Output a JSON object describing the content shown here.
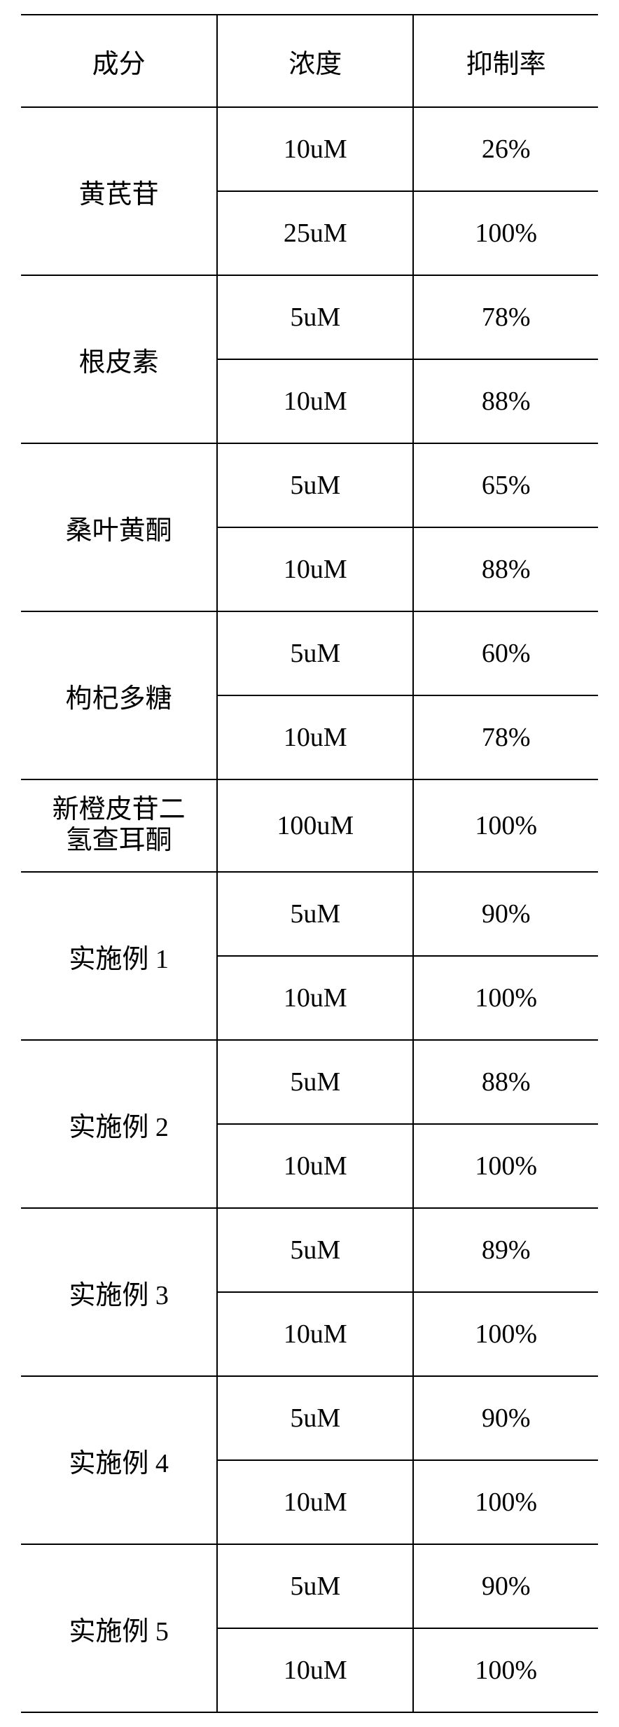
{
  "table": {
    "headers": [
      "成分",
      "浓度",
      "抑制率"
    ],
    "border_color": "#000000",
    "background_color": "#ffffff",
    "text_color": "#000000",
    "font_size_pt": 28,
    "groups": [
      {
        "name": "黄芪苷",
        "rows": [
          {
            "conc": "10uM",
            "rate": "26%"
          },
          {
            "conc": "25uM",
            "rate": "100%"
          }
        ]
      },
      {
        "name": "根皮素",
        "rows": [
          {
            "conc": "5uM",
            "rate": "78%"
          },
          {
            "conc": "10uM",
            "rate": "88%"
          }
        ]
      },
      {
        "name": "桑叶黄酮",
        "rows": [
          {
            "conc": "5uM",
            "rate": "65%"
          },
          {
            "conc": "10uM",
            "rate": "88%"
          }
        ]
      },
      {
        "name": "枸杞多糖",
        "rows": [
          {
            "conc": "5uM",
            "rate": "60%"
          },
          {
            "conc": "10uM",
            "rate": "78%"
          }
        ]
      },
      {
        "name": "新橙皮苷二\n氢查耳酮",
        "rows": [
          {
            "conc": "100uM",
            "rate": "100%"
          }
        ]
      },
      {
        "name": "实施例 1",
        "rows": [
          {
            "conc": "5uM",
            "rate": "90%"
          },
          {
            "conc": "10uM",
            "rate": "100%"
          }
        ]
      },
      {
        "name": "实施例 2",
        "rows": [
          {
            "conc": "5uM",
            "rate": "88%"
          },
          {
            "conc": "10uM",
            "rate": "100%"
          }
        ]
      },
      {
        "name": "实施例 3",
        "rows": [
          {
            "conc": "5uM",
            "rate": "89%"
          },
          {
            "conc": "10uM",
            "rate": "100%"
          }
        ]
      },
      {
        "name": "实施例 4",
        "rows": [
          {
            "conc": "5uM",
            "rate": "90%"
          },
          {
            "conc": "10uM",
            "rate": "100%"
          }
        ]
      },
      {
        "name": "实施例 5",
        "rows": [
          {
            "conc": "5uM",
            "rate": "90%"
          },
          {
            "conc": "10uM",
            "rate": "100%"
          }
        ]
      }
    ]
  }
}
